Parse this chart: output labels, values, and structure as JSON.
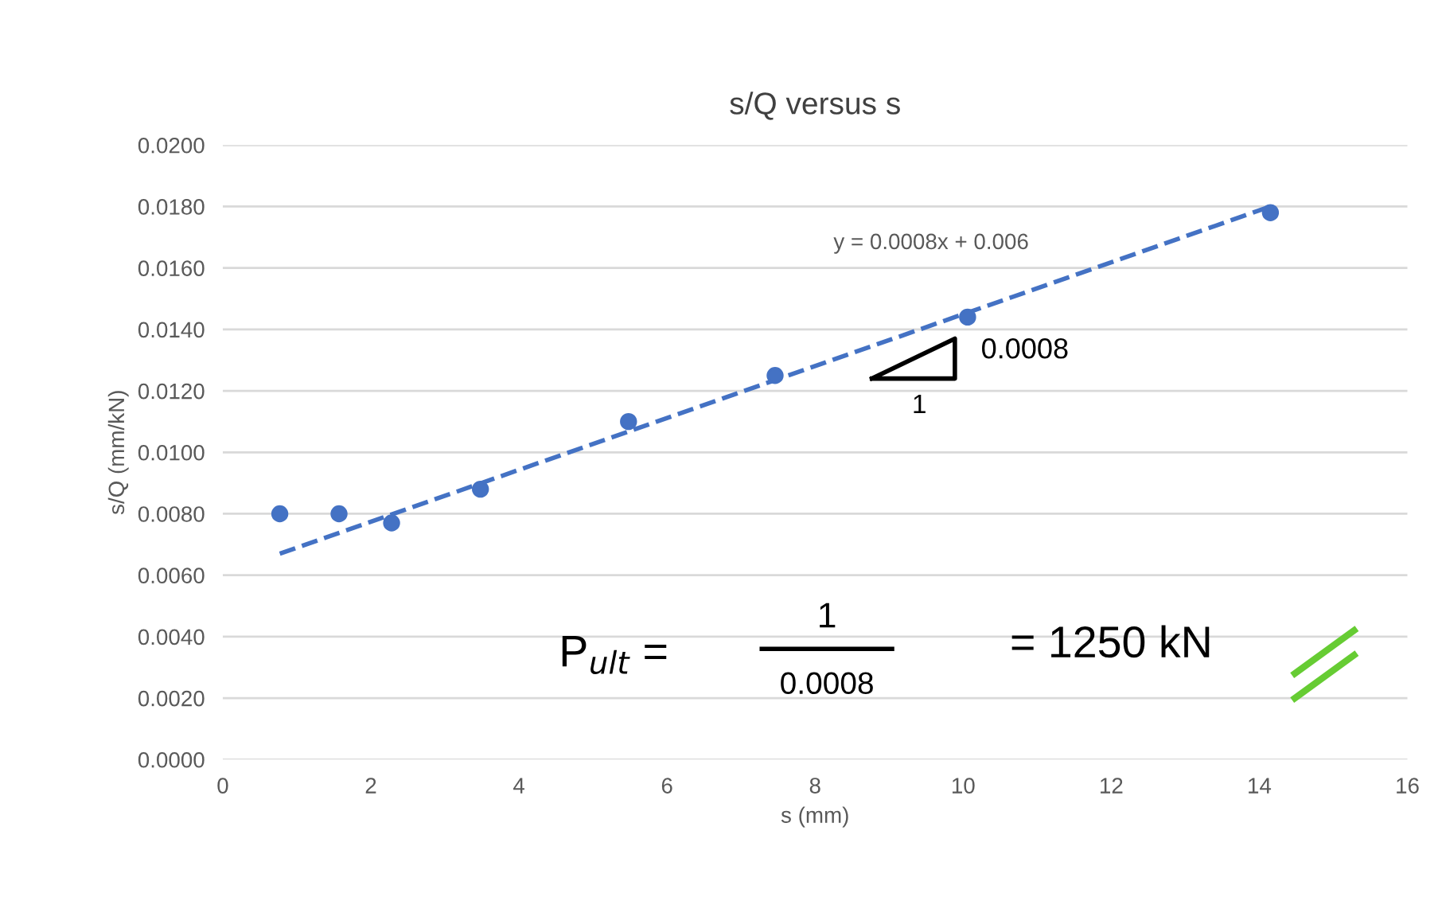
{
  "chart_data": {
    "type": "scatter",
    "title": "s/Q versus s",
    "xlabel": "s (mm)",
    "ylabel": "s/Q (mm/kN)",
    "xlim": [
      0,
      16
    ],
    "xticks": [
      0,
      2,
      4,
      6,
      8,
      10,
      12,
      14,
      16
    ],
    "ylim": [
      0,
      0.02
    ],
    "yticks": [
      {
        "value": 0,
        "label": "0.0000"
      },
      {
        "value": 0.002,
        "label": "0.0020"
      },
      {
        "value": 0.004,
        "label": "0.0040"
      },
      {
        "value": 0.006,
        "label": "0.0060"
      },
      {
        "value": 0.008,
        "label": "0.0080"
      },
      {
        "value": 0.01,
        "label": "0.0100"
      },
      {
        "value": 0.012,
        "label": "0.0120"
      },
      {
        "value": 0.014,
        "label": "0.0140"
      },
      {
        "value": 0.016,
        "label": "0.0160"
      },
      {
        "value": 0.018,
        "label": "0.0180"
      },
      {
        "value": 0.02,
        "label": "0.0200"
      }
    ],
    "grid": "y",
    "series": [
      {
        "marker": "circle",
        "color": "#4472c4",
        "x": [
          0.77,
          1.57,
          2.28,
          3.48,
          5.48,
          7.46,
          10.06,
          14.15
        ],
        "values": [
          0.008,
          0.008,
          0.0077,
          0.0088,
          0.011,
          0.0125,
          0.0144,
          0.0178
        ]
      },
      {
        "type": "line",
        "color": "#4472c4",
        "line_style": "dashed",
        "x": [
          0.77,
          14.15
        ],
        "values": [
          0.0067,
          0.018
        ]
      }
    ],
    "annotations": [
      "y = 0.0008x + 0.006",
      "0.0008",
      "1",
      "P$_{ult}$ =",
      "1",
      "0.0008",
      "= 1250 kN"
    ]
  }
}
